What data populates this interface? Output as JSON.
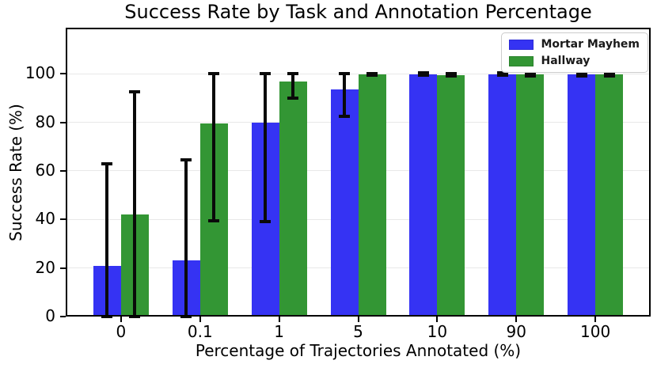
{
  "chart_data": {
    "type": "bar",
    "title": "Success Rate by Task and Annotation Percentage",
    "xlabel": "Percentage of Trajectories Annotated (%)",
    "ylabel": "Success Rate (%)",
    "categories": [
      "0",
      "0.1",
      "1",
      "5",
      "10",
      "90",
      "100"
    ],
    "series": [
      {
        "name": "Mortar Mayhem",
        "color": "#3533f3",
        "values": [
          21,
          23,
          80,
          93.5,
          99.8,
          99.8,
          99.7
        ],
        "error_low": [
          0,
          0,
          39,
          82.5,
          99.3,
          99.3,
          99.2
        ],
        "error_high": [
          63,
          64.5,
          100,
          100,
          100.3,
          100.3,
          100.2
        ]
      },
      {
        "name": "Hallway",
        "color": "#339634",
        "values": [
          42,
          79.5,
          96.8,
          99.8,
          99.6,
          99.7,
          99.7
        ],
        "error_low": [
          0,
          39.5,
          90,
          99.3,
          99.1,
          99.2,
          99.2
        ],
        "error_high": [
          92.5,
          100,
          100,
          100.2,
          100.1,
          100.2,
          100.2
        ]
      }
    ],
    "yticks": [
      0,
      20,
      40,
      60,
      80,
      100
    ],
    "ylim": [
      0,
      119
    ],
    "grid": true,
    "error_bar_color": "#0a0a0a",
    "legend_position": "top-right"
  }
}
